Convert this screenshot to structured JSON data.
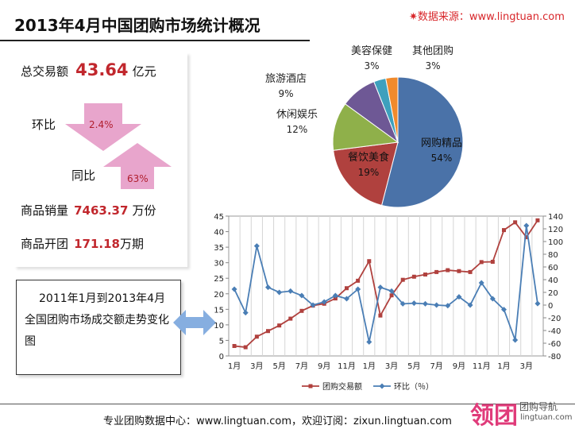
{
  "header": {
    "title": "2013年4月中国团购市场统计概况",
    "source": "✷数据来源：www.lingtuan.com"
  },
  "kpis": {
    "total_label": "总交易额",
    "total_value": "43.64",
    "total_unit": "亿元",
    "mom_label": "环比",
    "mom_value": "2.4%",
    "yoy_label": "同比",
    "yoy_value": "63%",
    "sales_label": "商品销量",
    "sales_value": "7463.37",
    "sales_unit": "万份",
    "deals_label": "商品开团",
    "deals_value": "171.18",
    "deals_unit": "万期"
  },
  "description": "2011年1月到2013年4月全国团购市场成交额走势变化图",
  "footer": {
    "text": "专业团购数据中心：www.lingtuan.com，欢迎订阅：zixun.lingtuan.com",
    "logo_main": "领团",
    "logo_sub": "团购导航",
    "logo_url": "lingtuan.com"
  },
  "colors": {
    "accent_red": "#c1272d",
    "arrow_pink": "#e8a5cc",
    "line_red": "#b0413e",
    "line_blue": "#4a7eb5"
  },
  "chart_data": [
    {
      "type": "pie",
      "slices": [
        {
          "label": "网购精品",
          "value": 54,
          "text": "54%",
          "color": "#4a72a8"
        },
        {
          "label": "餐饮美食",
          "value": 19,
          "text": "19%",
          "color": "#b0413e"
        },
        {
          "label": "休闲娱乐",
          "value": 12,
          "text": "12%",
          "color": "#8fb04a"
        },
        {
          "label": "旅游酒店",
          "value": 9,
          "text": "9%",
          "color": "#6e5895"
        },
        {
          "label": "美容保健",
          "value": 3,
          "text": "3%",
          "color": "#3ea0bd"
        },
        {
          "label": "其他团购",
          "value": 3,
          "text": "3%",
          "color": "#f08a2c"
        }
      ]
    },
    {
      "type": "line",
      "x": [
        "1月",
        "2月",
        "3月",
        "4月",
        "5月",
        "6月",
        "7月",
        "8月",
        "9月",
        "10月",
        "11月",
        "12月",
        "1月",
        "2月",
        "3月",
        "4月",
        "5月",
        "6月",
        "7月",
        "8月",
        "9月",
        "10月",
        "11月",
        "12月",
        "1月",
        "2月",
        "3月",
        "4月"
      ],
      "x_tick_labels": [
        "1月",
        "3月",
        "5月",
        "7月",
        "9月",
        "11月",
        "1月",
        "3月",
        "5月",
        "7月",
        "9月",
        "11月",
        "1月",
        "3月"
      ],
      "series": [
        {
          "name": "团购交易额",
          "axis": "left",
          "color": "#b0413e",
          "marker": "square",
          "values": [
            3.2,
            2.8,
            6.2,
            8.0,
            9.8,
            12.0,
            14.5,
            16.2,
            16.8,
            18.5,
            21.8,
            24.2,
            30.5,
            13.0,
            19.5,
            24.5,
            25.5,
            26.2,
            27.0,
            27.6,
            27.3,
            27.0,
            30.2,
            30.3,
            40.5,
            43.0,
            38.2,
            43.64
          ]
        },
        {
          "name": "环比（％）",
          "axis": "right",
          "color": "#4a7eb5",
          "marker": "diamond",
          "values": [
            25,
            -12,
            93,
            28,
            20,
            22,
            15,
            0,
            5,
            15,
            10,
            25,
            -58,
            28,
            22,
            2,
            3,
            2,
            0,
            -1,
            13,
            0,
            35,
            10,
            -7,
            -55,
            125,
            2.4
          ]
        }
      ],
      "y_left": {
        "min": 0,
        "max": 45,
        "ticks": [
          0,
          5,
          10,
          15,
          20,
          25,
          30,
          35,
          40,
          45
        ]
      },
      "y_right": {
        "min": -80,
        "max": 140,
        "ticks": [
          -80,
          -60,
          -40,
          -20,
          0,
          20,
          40,
          60,
          80,
          100,
          120,
          140
        ]
      },
      "grid": "vertical",
      "legend": "bottom"
    }
  ]
}
